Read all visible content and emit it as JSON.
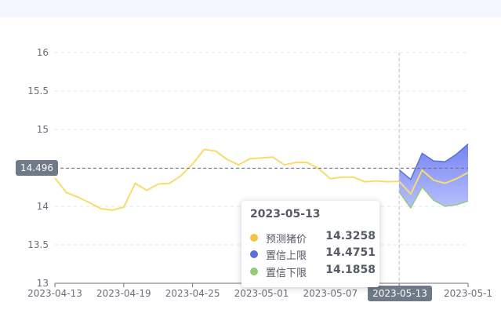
{
  "chart_data": {
    "type": "line",
    "x": [
      "2023-04-13",
      "2023-04-14",
      "2023-04-15",
      "2023-04-16",
      "2023-04-17",
      "2023-04-18",
      "2023-04-19",
      "2023-04-20",
      "2023-04-21",
      "2023-04-22",
      "2023-04-23",
      "2023-04-24",
      "2023-04-25",
      "2023-04-26",
      "2023-04-27",
      "2023-04-28",
      "2023-04-29",
      "2023-04-30",
      "2023-05-01",
      "2023-05-02",
      "2023-05-03",
      "2023-05-04",
      "2023-05-05",
      "2023-05-06",
      "2023-05-07",
      "2023-05-08",
      "2023-05-09",
      "2023-05-10",
      "2023-05-11",
      "2023-05-12",
      "2023-05-13",
      "2023-05-14",
      "2023-05-15",
      "2023-05-16",
      "2023-05-17",
      "2023-05-18",
      "2023-05-19"
    ],
    "x_tick_labels": [
      "2023-04-13",
      "2023-04-19",
      "2023-04-25",
      "2023-05-01",
      "2023-05-07",
      "2023-05-13",
      "2023-05-1"
    ],
    "series": [
      {
        "name": "预测猪价",
        "color": "#f5c242",
        "values": [
          14.37,
          14.18,
          14.12,
          14.05,
          13.97,
          13.95,
          13.99,
          14.3,
          14.21,
          14.29,
          14.3,
          14.4,
          14.55,
          14.74,
          14.72,
          14.61,
          14.54,
          14.62,
          14.63,
          14.64,
          14.54,
          14.57,
          14.57,
          14.49,
          14.36,
          14.38,
          14.38,
          14.32,
          14.33,
          14.32,
          14.3258,
          14.16,
          14.47,
          14.34,
          14.3,
          14.36,
          14.44
        ]
      },
      {
        "name": "置信上限",
        "color": "#5b6fd6",
        "values": [
          null,
          null,
          null,
          null,
          null,
          null,
          null,
          null,
          null,
          null,
          null,
          null,
          null,
          null,
          null,
          null,
          null,
          null,
          null,
          null,
          null,
          null,
          null,
          null,
          null,
          null,
          null,
          null,
          null,
          null,
          14.4751,
          14.35,
          14.69,
          14.59,
          14.58,
          14.68,
          14.81
        ]
      },
      {
        "name": "置信下限",
        "color": "#91cc75",
        "values": [
          null,
          null,
          null,
          null,
          null,
          null,
          null,
          null,
          null,
          null,
          null,
          null,
          null,
          null,
          null,
          null,
          null,
          null,
          null,
          null,
          null,
          null,
          null,
          null,
          null,
          null,
          null,
          null,
          null,
          null,
          14.1858,
          13.98,
          14.25,
          14.08,
          14.0,
          14.02,
          14.07
        ]
      }
    ],
    "ylim": [
      13,
      16
    ],
    "y_ticks": [
      "13",
      "13.5",
      "14",
      "14.5",
      "15",
      "15.5",
      "16"
    ],
    "grid": "horizontal dashed",
    "legend": "none",
    "reference_value": "14.496"
  },
  "tooltip": {
    "date": "2023-05-13",
    "rows": [
      {
        "name": "预测猪价",
        "value": "14.3258",
        "color": "#f5c242"
      },
      {
        "name": "置信上限",
        "value": "14.4751",
        "color": "#5b6fd6"
      },
      {
        "name": "置信下限",
        "value": "14.1858",
        "color": "#91cc75"
      }
    ]
  },
  "x_pointer_label": "2023-05-13"
}
